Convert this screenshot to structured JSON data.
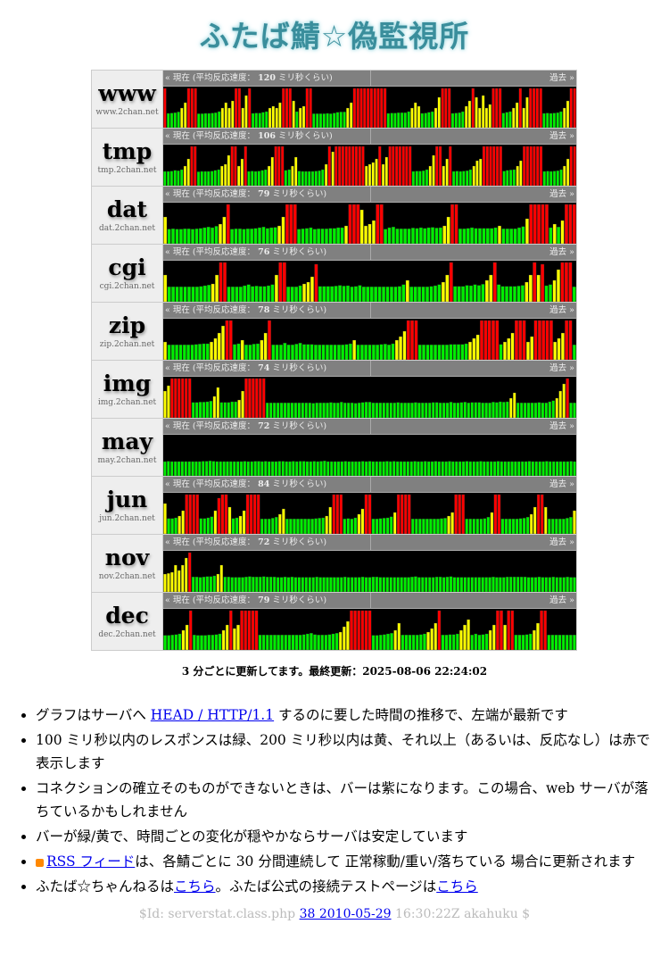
{
  "logo_text": "ふたば鯖☆偽監視所",
  "graph_header": {
    "prefix": "« 現在 (平均反応速度：",
    "suffix": "ミリ秒くらい)",
    "past": "過去 »"
  },
  "colors": {
    "green": "#00ee00",
    "yellow": "#ffff00",
    "red": "#ff0000",
    "chart_bg": "#000000",
    "header_bg": "#808080"
  },
  "chart_data": {
    "type": "bar",
    "thresholds_ms": {
      "green_below": 100,
      "yellow_below": 200
    },
    "ylim": [
      0,
      220
    ],
    "servers": [
      {
        "name": "www",
        "domain": "www.2chan.net",
        "avg": 120,
        "values": [
          250,
          80,
          82,
          84,
          88,
          110,
          140,
          250,
          250,
          250,
          78,
          78,
          80,
          80,
          82,
          84,
          90,
          110,
          140,
          110,
          150,
          250,
          250,
          110,
          180,
          250,
          80,
          82,
          82,
          86,
          90,
          110,
          120,
          110,
          140,
          250,
          250,
          250,
          150,
          90,
          110,
          120,
          250,
          250,
          78,
          78,
          78,
          78,
          80,
          78,
          82,
          86,
          88,
          88,
          110,
          140,
          250,
          250,
          250,
          250,
          250,
          250,
          250,
          250,
          250,
          250,
          80,
          82,
          82,
          84,
          84,
          84,
          90,
          110,
          140,
          120,
          80,
          82,
          86,
          90,
          110,
          170,
          250,
          250,
          250,
          80,
          82,
          84,
          90,
          120,
          150,
          250,
          170,
          110,
          180,
          110,
          130,
          250,
          250,
          250,
          82,
          86,
          90,
          110,
          140,
          250,
          110,
          170,
          250,
          250,
          250,
          250,
          80,
          82,
          80,
          82,
          84,
          90,
          110,
          150,
          250,
          250
        ]
      },
      {
        "name": "tmp",
        "domain": "tmp.2chan.net",
        "avg": 106,
        "values": [
          80,
          80,
          82,
          86,
          84,
          90,
          110,
          150,
          250,
          250,
          78,
          80,
          80,
          80,
          82,
          86,
          90,
          110,
          120,
          170,
          250,
          250,
          110,
          150,
          250,
          80,
          82,
          80,
          82,
          86,
          90,
          110,
          160,
          250,
          250,
          250,
          86,
          90,
          110,
          160,
          82,
          80,
          80,
          80,
          80,
          82,
          84,
          90,
          120,
          220,
          190,
          250,
          250,
          250,
          250,
          250,
          250,
          250,
          250,
          250,
          110,
          120,
          130,
          150,
          250,
          120,
          160,
          250,
          250,
          250,
          250,
          250,
          250,
          250,
          80,
          82,
          82,
          84,
          90,
          110,
          170,
          250,
          250,
          110,
          150,
          250,
          80,
          82,
          80,
          82,
          84,
          90,
          110,
          140,
          150,
          250,
          250,
          250,
          250,
          250,
          250,
          82,
          86,
          88,
          90,
          110,
          140,
          250,
          250,
          250,
          250,
          250,
          250,
          80,
          82,
          80,
          82,
          84,
          90,
          110,
          150,
          250,
          250
        ]
      },
      {
        "name": "dat",
        "domain": "dat.2chan.net",
        "avg": 79,
        "values": [
          150,
          82,
          84,
          82,
          82,
          84,
          84,
          82,
          84,
          86,
          90,
          94,
          90,
          98,
          110,
          150,
          250,
          82,
          84,
          84,
          82,
          84,
          84,
          86,
          90,
          94,
          86,
          90,
          92,
          100,
          150,
          220,
          220,
          220,
          82,
          84,
          86,
          90,
          82,
          84,
          84,
          84,
          86,
          86,
          90,
          90,
          100,
          220,
          250,
          250,
          190,
          100,
          110,
          130,
          220,
          250,
          82,
          90,
          94,
          84,
          84,
          84,
          84,
          88,
          86,
          90,
          86,
          90,
          92,
          88,
          90,
          100,
          150,
          250,
          250,
          84,
          84,
          86,
          90,
          86,
          86,
          86,
          86,
          86,
          90,
          100,
          84,
          84,
          84,
          84,
          90,
          96,
          140,
          250,
          250,
          250,
          250,
          250,
          90,
          110,
          94,
          130,
          220,
          250,
          250
        ]
      },
      {
        "name": "cgi",
        "domain": "cgi.2chan.net",
        "avg": 76,
        "values": [
          150,
          84,
          84,
          84,
          84,
          84,
          84,
          84,
          84,
          86,
          90,
          94,
          100,
          150,
          220,
          250,
          84,
          84,
          84,
          84,
          90,
          96,
          86,
          88,
          86,
          86,
          90,
          96,
          150,
          250,
          250,
          84,
          84,
          84,
          90,
          100,
          110,
          140,
          210,
          86,
          86,
          86,
          86,
          88,
          92,
          88,
          90,
          84,
          86,
          92,
          84,
          84,
          84,
          84,
          84,
          84,
          84,
          84,
          84,
          86,
          96,
          120,
          84,
          84,
          84,
          84,
          84,
          86,
          90,
          96,
          110,
          150,
          220,
          86,
          86,
          86,
          92,
          90,
          96,
          92,
          98,
          120,
          150,
          220,
          96,
          86,
          86,
          86,
          86,
          88,
          92,
          110,
          150,
          220,
          150,
          210,
          90,
          96,
          120,
          180,
          220,
          250,
          250,
          84
        ]
      },
      {
        "name": "zip",
        "domain": "zip.2chan.net",
        "avg": 78,
        "values": [
          100,
          84,
          84,
          84,
          84,
          84,
          84,
          84,
          86,
          88,
          90,
          90,
          100,
          120,
          150,
          190,
          250,
          250,
          86,
          90,
          110,
          84,
          84,
          88,
          90,
          110,
          150,
          220,
          84,
          84,
          84,
          94,
          84,
          84,
          88,
          94,
          86,
          86,
          86,
          84,
          84,
          84,
          84,
          84,
          84,
          84,
          84,
          86,
          90,
          110,
          84,
          84,
          84,
          84,
          84,
          84,
          86,
          88,
          84,
          90,
          110,
          130,
          160,
          250,
          250,
          250,
          84,
          84,
          84,
          84,
          84,
          84,
          84,
          84,
          86,
          86,
          86,
          86,
          90,
          100,
          120,
          140,
          220,
          250,
          250,
          250,
          250,
          86,
          100,
          120,
          150,
          220,
          250,
          250,
          100,
          130,
          220,
          250,
          250,
          250,
          250,
          100,
          120,
          150,
          220,
          250,
          84
        ]
      },
      {
        "name": "img",
        "domain": "img.2chan.net",
        "avg": 74,
        "values": [
          150,
          180,
          220,
          250,
          250,
          250,
          250,
          250,
          86,
          86,
          88,
          88,
          90,
          94,
          120,
          170,
          86,
          86,
          86,
          90,
          90,
          100,
          150,
          220,
          250,
          250,
          250,
          250,
          250,
          84,
          84,
          84,
          84,
          84,
          84,
          84,
          84,
          84,
          84,
          84,
          84,
          84,
          82,
          84,
          84,
          84,
          84,
          86,
          84,
          84,
          88,
          84,
          84,
          84,
          82,
          84,
          86,
          88,
          88,
          84,
          84,
          84,
          84,
          84,
          84,
          84,
          86,
          84,
          84,
          84,
          84,
          86,
          84,
          84,
          84,
          84,
          86,
          86,
          84,
          84,
          84,
          88,
          84,
          84,
          86,
          88,
          84,
          86,
          86,
          86,
          84,
          84,
          84,
          88,
          86,
          90,
          88,
          90,
          110,
          140,
          84,
          84,
          84,
          84,
          84,
          84,
          86,
          84,
          84,
          90,
          96,
          110,
          150,
          190,
          220,
          84,
          84
        ]
      },
      {
        "name": "may",
        "domain": "may.2chan.net",
        "avg": 72,
        "values": [
          80,
          82,
          80,
          80,
          80,
          80,
          80,
          80,
          80,
          80,
          80,
          82,
          82,
          84,
          82,
          80,
          80,
          80,
          80,
          80,
          80,
          80,
          80,
          82,
          80,
          80,
          82,
          82,
          80,
          82,
          80,
          80,
          80,
          82,
          82,
          80,
          80,
          82,
          80,
          82,
          82,
          80,
          80,
          82,
          80,
          82,
          84,
          80,
          80,
          80,
          80,
          80,
          82,
          80,
          80,
          80,
          80,
          82,
          80,
          82,
          80,
          80,
          80,
          80,
          82,
          80,
          82,
          80,
          80,
          80,
          80,
          80,
          82,
          80,
          80,
          82,
          80,
          80,
          82,
          80,
          80,
          80,
          82,
          80,
          80,
          80,
          80,
          82,
          80,
          80,
          80,
          82,
          80,
          80,
          80,
          80,
          82,
          80,
          80,
          80,
          80,
          80,
          80,
          80,
          80,
          82,
          80,
          80,
          80,
          80,
          82,
          80,
          80,
          80,
          80,
          80,
          80,
          82,
          80
        ]
      },
      {
        "name": "jun",
        "domain": "jun.2chan.net",
        "avg": 84,
        "values": [
          170,
          86,
          86,
          90,
          100,
          130,
          250,
          250,
          250,
          250,
          86,
          86,
          90,
          96,
          130,
          200,
          250,
          250,
          150,
          86,
          90,
          100,
          130,
          250,
          250,
          250,
          250,
          84,
          84,
          84,
          88,
          94,
          110,
          140,
          84,
          84,
          84,
          84,
          84,
          84,
          84,
          84,
          86,
          88,
          90,
          100,
          150,
          220,
          250,
          250,
          84,
          86,
          84,
          90,
          110,
          140,
          250,
          250,
          84,
          84,
          86,
          88,
          90,
          96,
          120,
          250,
          250,
          250,
          250,
          84,
          84,
          84,
          84,
          84,
          84,
          84,
          84,
          86,
          88,
          100,
          120,
          220,
          250,
          250,
          84,
          84,
          84,
          84,
          84,
          86,
          94,
          120,
          220,
          250,
          84,
          84,
          84,
          84,
          84,
          86,
          88,
          94,
          110,
          150,
          220,
          250,
          150,
          84,
          84,
          84,
          84,
          84,
          88,
          94,
          130
        ]
      },
      {
        "name": "nov",
        "domain": "nov.2chan.net",
        "avg": 72,
        "values": [
          100,
          104,
          110,
          150,
          120,
          150,
          190,
          250,
          84,
          84,
          82,
          84,
          86,
          86,
          90,
          100,
          150,
          84,
          84,
          82,
          82,
          82,
          82,
          84,
          86,
          84,
          84,
          84,
          86,
          84,
          84,
          84,
          82,
          82,
          84,
          82,
          84,
          82,
          82,
          82,
          82,
          82,
          82,
          84,
          82,
          82,
          82,
          82,
          82,
          82,
          82,
          84,
          82,
          82,
          82,
          82,
          84,
          82,
          82,
          84,
          84,
          82,
          82,
          82,
          82,
          82,
          82,
          82,
          82,
          82,
          84,
          86,
          82,
          82,
          82,
          82,
          82,
          84,
          84,
          82,
          84,
          86,
          82,
          82,
          82,
          82,
          82,
          82,
          82,
          82,
          82,
          82,
          82,
          84,
          82,
          82,
          82,
          84,
          84,
          84,
          84,
          84,
          84,
          82,
          82,
          82,
          84,
          82,
          82,
          82,
          84,
          82,
          82,
          82,
          84,
          82,
          82
        ]
      },
      {
        "name": "dec",
        "domain": "dec.2chan.net",
        "avg": 79,
        "values": [
          82,
          82,
          84,
          86,
          90,
          110,
          140,
          250,
          84,
          82,
          82,
          82,
          84,
          84,
          86,
          90,
          110,
          140,
          220,
          120,
          140,
          220,
          250,
          250,
          250,
          250,
          84,
          84,
          84,
          84,
          84,
          84,
          84,
          84,
          84,
          84,
          84,
          84,
          86,
          90,
          94,
          86,
          84,
          84,
          84,
          86,
          90,
          94,
          100,
          130,
          160,
          220,
          250,
          250,
          250,
          250,
          250,
          82,
          82,
          84,
          86,
          90,
          94,
          110,
          150,
          84,
          84,
          84,
          84,
          84,
          86,
          90,
          100,
          120,
          150,
          220,
          84,
          84,
          86,
          86,
          90,
          110,
          140,
          170,
          84,
          90,
          84,
          86,
          90,
          110,
          140,
          250,
          250,
          140,
          220,
          250,
          84,
          84,
          84,
          86,
          90,
          110,
          150,
          250,
          250,
          84,
          84,
          84,
          84,
          84,
          84,
          84,
          84
        ]
      }
    ]
  },
  "update_text": "3 分ごとに更新してます。最終更新：2025-08-06 22:24:02",
  "notes": {
    "n1_pre": "グラフはサーバへ ",
    "n1_link": "HEAD / HTTP/1.1",
    "n1_post": " するのに要した時間の推移で、左端が最新です",
    "n2": "100 ミリ秒以内のレスポンスは緑、200 ミリ秒以内は黄、それ以上（あるいは、反応なし）は赤で表示します",
    "n3": "コネクションの確立そのものができないときは、バーは紫になります。この場合、web サーバが落ちているかもしれません",
    "n4": "バーが緑/黄で、時間ごとの変化が穏やかならサーバは安定しています",
    "n5_link": "RSS フィード",
    "n5_post": "は、各鯖ごとに 30 分間連続して 正常稼動/重い/落ちている 場合に更新されます",
    "n6_pre": "ふたば☆ちゃんねるは",
    "n6_link1": "こちら",
    "n6_mid": "。ふたば公式の接続テストページは",
    "n6_link2": "こちら"
  },
  "footer": {
    "pre": "$Id: serverstat.class.php ",
    "link": "38 2010-05-29",
    "post": " 16:30:22Z akahuku $"
  }
}
